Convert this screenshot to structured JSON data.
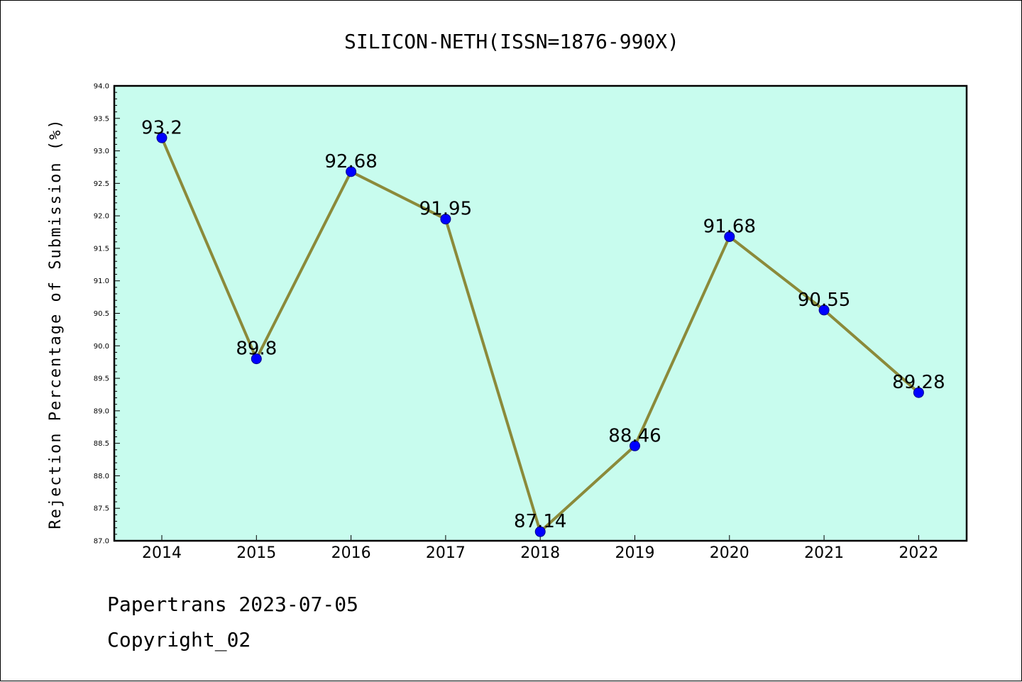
{
  "chart_data": {
    "type": "line",
    "title": "SILICON-NETH(ISSN=1876-990X)",
    "ylabel": "Rejection Percentage of Submission (%)",
    "xlabel": "",
    "categories": [
      "2014",
      "2015",
      "2016",
      "2017",
      "2018",
      "2019",
      "2020",
      "2021",
      "2022"
    ],
    "series": [
      {
        "values": [
          93.2,
          89.8,
          92.68,
          91.95,
          87.14,
          88.46,
          91.68,
          90.55,
          89.28
        ],
        "labels": [
          "93.2",
          "89.8",
          "92.68",
          "91.95",
          "87.14",
          "88.46",
          "91.68",
          "90.55",
          "89.28"
        ]
      }
    ],
    "ylim": [
      87.0,
      94.0
    ],
    "yticks": [
      "87.0",
      "87.5",
      "88.0",
      "88.5",
      "89.0",
      "89.5",
      "90.0",
      "90.5",
      "91.0",
      "91.5",
      "92.0",
      "92.5",
      "93.0",
      "93.5",
      "94.0"
    ],
    "grid": false,
    "colors": {
      "plot_background": "#c8fcee",
      "line": "#8b8a3a",
      "marker": "#0000ff"
    }
  },
  "footer": {
    "line1": "Papertrans 2023-07-05",
    "line2": "Copyright_02"
  }
}
